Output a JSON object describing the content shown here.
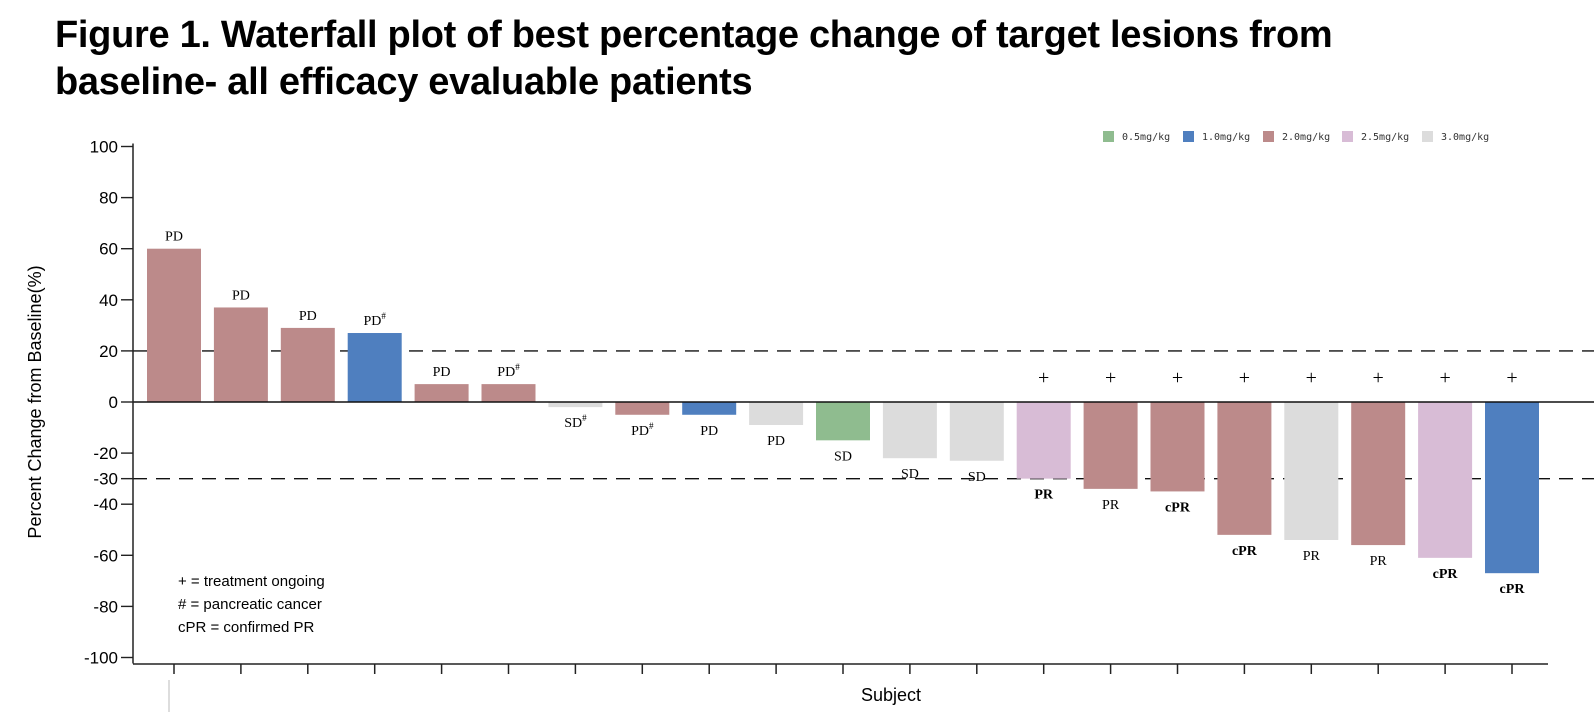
{
  "title": {
    "line1": "Figure 1. Waterfall plot of best percentage change of target lesions from",
    "line2": "baseline- all efficacy evaluable patients"
  },
  "chart_data": {
    "type": "bar",
    "subtype": "waterfall",
    "title": "Figure 1. Waterfall plot of best percentage change of target lesions from baseline- all efficacy evaluable patients",
    "xlabel": "Subject",
    "ylabel": "Percent Change from Baseline(%)",
    "ylim": [
      -100,
      100
    ],
    "yticks": [
      100,
      80,
      60,
      40,
      20,
      0,
      -20,
      -30,
      -40,
      -60,
      -80,
      -100
    ],
    "reference_lines": [
      20,
      -30
    ],
    "grid": false,
    "legend_position": "top-right",
    "legend": [
      {
        "name": "0.5mg/kg",
        "color": "#8fbc8f"
      },
      {
        "name": "1.0mg/kg",
        "color": "#4f7fbf"
      },
      {
        "name": "2.0mg/kg",
        "color": "#bc8a8a"
      },
      {
        "name": "2.5mg/kg",
        "color": "#d8bcd6"
      },
      {
        "name": "3.0mg/kg",
        "color": "#dcdcdc"
      }
    ],
    "bars": [
      {
        "value": 60,
        "dose": "2.0mg/kg",
        "label": "PD",
        "sup": "",
        "bold": false,
        "ongoing": false
      },
      {
        "value": 37,
        "dose": "2.0mg/kg",
        "label": "PD",
        "sup": "",
        "bold": false,
        "ongoing": false
      },
      {
        "value": 29,
        "dose": "2.0mg/kg",
        "label": "PD",
        "sup": "",
        "bold": false,
        "ongoing": false
      },
      {
        "value": 27,
        "dose": "1.0mg/kg",
        "label": "PD",
        "sup": "#",
        "bold": false,
        "ongoing": false
      },
      {
        "value": 7,
        "dose": "2.0mg/kg",
        "label": "PD",
        "sup": "",
        "bold": false,
        "ongoing": false
      },
      {
        "value": 7,
        "dose": "2.0mg/kg",
        "label": "PD",
        "sup": "#",
        "bold": false,
        "ongoing": false
      },
      {
        "value": -2,
        "dose": "3.0mg/kg",
        "label": "SD",
        "sup": "#",
        "bold": false,
        "ongoing": false
      },
      {
        "value": -5,
        "dose": "2.0mg/kg",
        "label": "PD",
        "sup": "#",
        "bold": false,
        "ongoing": false
      },
      {
        "value": -5,
        "dose": "1.0mg/kg",
        "label": "PD",
        "sup": "",
        "bold": false,
        "ongoing": false
      },
      {
        "value": -9,
        "dose": "3.0mg/kg",
        "label": "PD",
        "sup": "",
        "bold": false,
        "ongoing": false
      },
      {
        "value": -15,
        "dose": "0.5mg/kg",
        "label": "SD",
        "sup": "",
        "bold": false,
        "ongoing": false
      },
      {
        "value": -22,
        "dose": "3.0mg/kg",
        "label": "SD",
        "sup": "",
        "bold": false,
        "ongoing": false
      },
      {
        "value": -23,
        "dose": "3.0mg/kg",
        "label": "SD",
        "sup": "",
        "bold": false,
        "ongoing": false
      },
      {
        "value": -30,
        "dose": "2.5mg/kg",
        "label": "PR",
        "sup": "",
        "bold": true,
        "ongoing": true
      },
      {
        "value": -34,
        "dose": "2.0mg/kg",
        "label": "PR",
        "sup": "",
        "bold": false,
        "ongoing": true
      },
      {
        "value": -35,
        "dose": "2.0mg/kg",
        "label": "cPR",
        "sup": "",
        "bold": true,
        "ongoing": true
      },
      {
        "value": -52,
        "dose": "2.0mg/kg",
        "label": "cPR",
        "sup": "",
        "bold": true,
        "ongoing": true
      },
      {
        "value": -54,
        "dose": "3.0mg/kg",
        "label": "PR",
        "sup": "",
        "bold": false,
        "ongoing": true
      },
      {
        "value": -56,
        "dose": "2.0mg/kg",
        "label": "PR",
        "sup": "",
        "bold": false,
        "ongoing": true
      },
      {
        "value": -61,
        "dose": "2.5mg/kg",
        "label": "cPR",
        "sup": "",
        "bold": true,
        "ongoing": true
      },
      {
        "value": -67,
        "dose": "1.0mg/kg",
        "label": "cPR",
        "sup": "",
        "bold": true,
        "ongoing": true
      }
    ],
    "ongoing_marker": "+",
    "notes": [
      "+ = treatment ongoing",
      "# = pancreatic cancer",
      "cPR = confirmed PR"
    ]
  }
}
